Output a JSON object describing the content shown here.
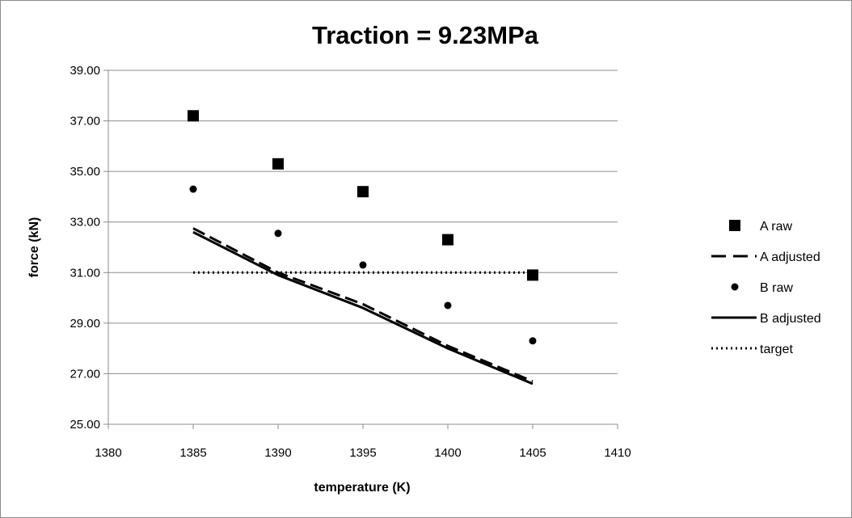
{
  "chart_data": {
    "type": "scatter",
    "title": "Traction = 9.23MPa",
    "xlabel": "temperature (K)",
    "ylabel": "force (kN)",
    "xlim": [
      1380,
      1410
    ],
    "ylim": [
      25,
      39
    ],
    "x_ticks": [
      1380,
      1385,
      1390,
      1395,
      1400,
      1405,
      1410
    ],
    "x_tick_labels": [
      "1380",
      "1385",
      "1390",
      "1395",
      "1400",
      "1405",
      "1410"
    ],
    "y_ticks": [
      25,
      27,
      29,
      31,
      33,
      35,
      37,
      39
    ],
    "y_tick_labels": [
      "25.00",
      "27.00",
      "29.00",
      "31.00",
      "33.00",
      "35.00",
      "37.00",
      "39.00"
    ],
    "grid": "horizontal",
    "legend_position": "right",
    "series": [
      {
        "name": "A raw",
        "style": "square-marker",
        "x": [
          1385,
          1390,
          1395,
          1400,
          1405
        ],
        "y": [
          37.2,
          35.3,
          34.2,
          32.3,
          30.9
        ]
      },
      {
        "name": "A adjusted",
        "style": "dashed-line",
        "x": [
          1385,
          1390,
          1395,
          1400,
          1405
        ],
        "y": [
          32.75,
          31.0,
          29.75,
          28.1,
          26.7
        ]
      },
      {
        "name": "B raw",
        "style": "circle-marker",
        "x": [
          1385,
          1390,
          1395,
          1400,
          1405
        ],
        "y": [
          34.3,
          32.55,
          31.3,
          29.7,
          28.3
        ]
      },
      {
        "name": "B adjusted",
        "style": "solid-line",
        "x": [
          1385,
          1390,
          1395,
          1400,
          1405
        ],
        "y": [
          32.6,
          30.9,
          29.6,
          28.0,
          26.6
        ]
      },
      {
        "name": "target",
        "style": "dotted-line",
        "x": [
          1385,
          1405
        ],
        "y": [
          31.0,
          31.0
        ]
      }
    ]
  }
}
